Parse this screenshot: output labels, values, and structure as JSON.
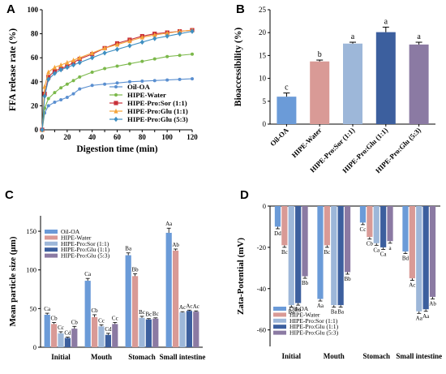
{
  "colors": {
    "oil": "#6b9bd8",
    "water": "#d99a96",
    "sor": "#9db7d9",
    "glu11": "#3c5f9e",
    "glu53": "#8b7aa3",
    "lineOil": "#5a8fd0",
    "lineWater": "#7bb84a",
    "lineSor": "#c8313a",
    "lineGlu11": "#f5a43a",
    "lineGlu53": "#3f8fc1"
  },
  "panels": {
    "A": "A",
    "B": "B",
    "C": "C",
    "D": "D"
  },
  "chart_data": [
    {
      "id": "A",
      "type": "line",
      "xlabel": "Digestion time (min)",
      "ylabel": "FFA release rate (%)",
      "xlim": [
        0,
        120
      ],
      "ylim": [
        0,
        100
      ],
      "xticks": [
        0,
        10,
        20,
        30,
        40,
        50,
        60,
        70,
        80,
        90,
        100,
        110,
        120
      ],
      "yticks": [
        0,
        20,
        40,
        60,
        80,
        100
      ],
      "legend_position": "bottom-right",
      "series": [
        {
          "name": "Oil-OA",
          "color_key": "lineOil",
          "marker": "dot",
          "x": [
            0,
            2,
            5,
            10,
            15,
            20,
            25,
            30,
            40,
            50,
            60,
            70,
            80,
            90,
            100,
            110,
            120
          ],
          "y": [
            0,
            14,
            20,
            23,
            25,
            27,
            30,
            34,
            37,
            38,
            39,
            40,
            40.5,
            41,
            41.5,
            42,
            42.5
          ]
        },
        {
          "name": "HIPE-Water",
          "color_key": "lineWater",
          "marker": "dot",
          "x": [
            0,
            2,
            5,
            10,
            15,
            20,
            25,
            30,
            40,
            50,
            60,
            70,
            80,
            90,
            100,
            110,
            120
          ],
          "y": [
            0,
            18,
            26,
            31,
            35,
            38,
            41,
            44,
            48,
            51,
            53,
            55,
            57,
            59,
            61,
            62,
            63
          ]
        },
        {
          "name": "HIPE-Pro:Sor (1:1)",
          "color_key": "lineSor",
          "marker": "square",
          "x": [
            0,
            2,
            5,
            10,
            15,
            20,
            25,
            30,
            40,
            50,
            60,
            70,
            80,
            90,
            100,
            110,
            120
          ],
          "y": [
            0,
            30,
            44,
            49,
            51,
            53,
            56,
            59,
            63,
            68,
            72,
            75,
            78,
            80,
            81,
            82,
            83
          ]
        },
        {
          "name": "HIPE-Pro:Glu (1:1)",
          "color_key": "lineGlu11",
          "marker": "triangle",
          "x": [
            0,
            2,
            5,
            10,
            15,
            20,
            25,
            30,
            40,
            50,
            60,
            70,
            80,
            90,
            100,
            110,
            120
          ],
          "y": [
            0,
            36,
            48,
            52,
            54,
            56,
            58,
            60,
            64,
            68,
            71,
            74,
            77,
            79,
            80.5,
            82,
            83
          ]
        },
        {
          "name": "HIPE-Pro:Glu (5:3)",
          "color_key": "lineGlu53",
          "marker": "diamond",
          "x": [
            0,
            2,
            5,
            10,
            15,
            20,
            25,
            30,
            40,
            50,
            60,
            70,
            80,
            90,
            100,
            110,
            120
          ],
          "y": [
            0,
            28,
            42,
            47,
            50,
            52,
            54,
            56,
            60,
            64,
            67,
            70,
            73,
            76,
            78,
            80,
            82
          ]
        }
      ]
    },
    {
      "id": "B",
      "type": "bar",
      "ylabel": "Bioaccessibility (%)",
      "ylim": [
        0,
        25
      ],
      "yticks": [
        0,
        5,
        10,
        15,
        20,
        25
      ],
      "categories": [
        "Oil-OA",
        "HIPE-Water",
        "HIPE-Pro:Sor (1:1)",
        "HIPE-Pro:Glu (1:1)",
        "HIPE-Pro:Glu (5:3)"
      ],
      "values": [
        6.0,
        13.7,
        17.6,
        20.1,
        17.4
      ],
      "errors": [
        0.8,
        0.3,
        0.3,
        1.1,
        0.5
      ],
      "letters": [
        "c",
        "b",
        "a",
        "a",
        "a"
      ],
      "color_keys": [
        "oil",
        "water",
        "sor",
        "glu11",
        "glu53"
      ]
    },
    {
      "id": "C",
      "type": "bar",
      "ylabel": "Mean particle size (μm)",
      "ylim": [
        0,
        170
      ],
      "yticks": [
        0,
        50,
        100,
        150
      ],
      "categories": [
        "Initial",
        "Mouth",
        "Stomach",
        "Small intestine"
      ],
      "legend_position": "top-left",
      "series": [
        {
          "name": "Oil-OA",
          "color_key": "oil",
          "values": [
            42,
            86,
            119,
            148
          ],
          "errors": [
            2,
            3,
            3,
            6
          ],
          "letters": [
            "Ca",
            "Ca",
            "Ba",
            "Aa"
          ]
        },
        {
          "name": "HIPE-Water",
          "color_key": "water",
          "values": [
            30,
            39,
            92,
            125
          ],
          "errors": [
            2,
            3,
            3,
            2
          ],
          "letters": [
            "Cb",
            "Cb",
            "Bb",
            "Ab"
          ]
        },
        {
          "name": "HIPE-Pro:Sor (1:1)",
          "color_key": "sor",
          "values": [
            18,
            27,
            38,
            45
          ],
          "errors": [
            2,
            2,
            2,
            1
          ],
          "letters": [
            "Cc",
            "Cc",
            "Bc",
            "Ac"
          ]
        },
        {
          "name": "HIPE-Pro:Glu (1:1)",
          "color_key": "glu11",
          "values": [
            12,
            16,
            36,
            47
          ],
          "errors": [
            1,
            2,
            1,
            1
          ],
          "letters": [
            "Cd",
            "Cd",
            "Bc",
            "Ac"
          ]
        },
        {
          "name": "HIPE-Pro:Glu (5:3)",
          "color_key": "glu53",
          "values": [
            24,
            30,
            37,
            46
          ],
          "errors": [
            3,
            2,
            1,
            1
          ],
          "letters": [
            "Cb",
            "Cc",
            "Bc",
            "Ac"
          ]
        }
      ]
    },
    {
      "id": "D",
      "type": "bar",
      "ylabel": "Zata-Potential (mV)",
      "ylim": [
        -68,
        0
      ],
      "yticks": [
        -60,
        -40,
        -20,
        0
      ],
      "categories": [
        "Initial",
        "Mouth",
        "Stomach",
        "Small intestine"
      ],
      "legend_position": "bottom-left",
      "series": [
        {
          "name": "Oil-OA",
          "color_key": "oil",
          "values": [
            -10,
            -45,
            -8,
            -22
          ],
          "errors": [
            1,
            1,
            1,
            1
          ],
          "letters": [
            "Dd",
            "Aa",
            "Cc",
            "Bd"
          ]
        },
        {
          "name": "HIPE-Water",
          "color_key": "water",
          "values": [
            -19,
            -19,
            -15,
            -35
          ],
          "errors": [
            1,
            1,
            1,
            1
          ],
          "letters": [
            "Bc",
            "Bc",
            "Cb",
            "Ac"
          ]
        },
        {
          "name": "HIPE-Pro:Sor (1:1)",
          "color_key": "sor",
          "values": [
            -48,
            -48,
            -18,
            -51
          ],
          "errors": [
            1,
            1,
            1,
            1
          ],
          "letters": [
            "Ba",
            "Ba",
            "Ca",
            "Aa"
          ]
        },
        {
          "name": "HIPE-Pro:Glu (1:1)",
          "color_key": "glu11",
          "values": [
            -47,
            -48,
            -20,
            -50
          ],
          "errors": [
            1,
            1,
            1,
            1
          ],
          "letters": [
            "Ba",
            "Ba",
            "Ca",
            "Aa"
          ]
        },
        {
          "name": "HIPE-Pro:Glu (5:3)",
          "color_key": "glu53",
          "values": [
            -34,
            -32,
            -17,
            -44
          ],
          "errors": [
            1,
            1,
            1,
            1
          ],
          "letters": [
            "Bb",
            "Bb",
            "a",
            "Ab"
          ]
        }
      ]
    }
  ]
}
